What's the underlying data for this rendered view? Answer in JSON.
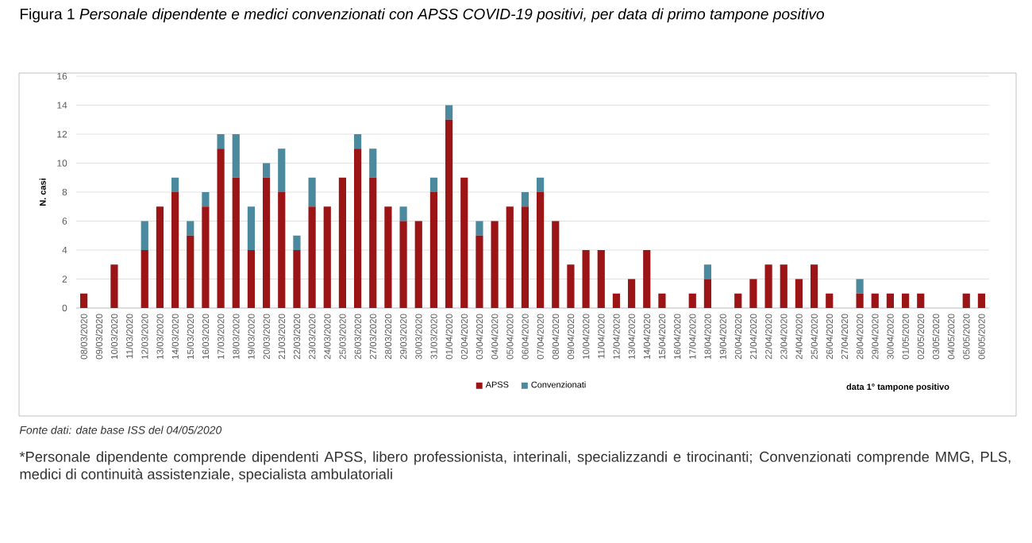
{
  "chart_data": {
    "type": "bar",
    "stacked": true,
    "title": "Figura 1 *Personale dipendente e medici convenzionati con APSS COVID-19 positivi, per data di primo tampone positivo*",
    "xlabel": "data 1° tampone positivo",
    "ylabel": "N. casi",
    "categories": [
      "08/03/2020",
      "09/03/2020",
      "10/03/2020",
      "11/03/2020",
      "12/03/2020",
      "13/03/2020",
      "14/03/2020",
      "15/03/2020",
      "16/03/2020",
      "17/03/2020",
      "18/03/2020",
      "19/03/2020",
      "20/03/2020",
      "21/03/2020",
      "22/03/2020",
      "23/03/2020",
      "24/03/2020",
      "25/03/2020",
      "26/03/2020",
      "27/03/2020",
      "28/03/2020",
      "29/03/2020",
      "30/03/2020",
      "31/03/2020",
      "01/04/2020",
      "02/04/2020",
      "03/04/2020",
      "04/04/2020",
      "05/04/2020",
      "06/04/2020",
      "07/04/2020",
      "08/04/2020",
      "09/04/2020",
      "10/04/2020",
      "11/04/2020",
      "12/04/2020",
      "13/04/2020",
      "14/04/2020",
      "15/04/2020",
      "16/04/2020",
      "17/04/2020",
      "18/04/2020",
      "19/04/2020",
      "20/04/2020",
      "21/04/2020",
      "22/04/2020",
      "23/04/2020",
      "24/04/2020",
      "25/04/2020",
      "26/04/2020",
      "27/04/2020",
      "28/04/2020",
      "29/04/2020",
      "30/04/2020",
      "01/05/2020",
      "02/05/2020",
      "03/05/2020",
      "04/05/2020",
      "05/05/2020",
      "06/05/2020"
    ],
    "series": [
      {
        "name": "APSS",
        "color": "#9b1416",
        "values": [
          1,
          0,
          3,
          0,
          4,
          7,
          8,
          5,
          7,
          11,
          9,
          4,
          9,
          8,
          4,
          7,
          7,
          9,
          11,
          9,
          7,
          6,
          6,
          8,
          13,
          9,
          5,
          6,
          7,
          7,
          8,
          6,
          3,
          4,
          4,
          1,
          2,
          4,
          1,
          0,
          1,
          2,
          0,
          1,
          2,
          3,
          3,
          2,
          3,
          1,
          0,
          1,
          1,
          1,
          1,
          1,
          0,
          0,
          1,
          1
        ]
      },
      {
        "name": "Convenzionati",
        "color": "#4b8a9e",
        "values": [
          0,
          0,
          0,
          0,
          2,
          0,
          1,
          1,
          1,
          1,
          3,
          3,
          1,
          3,
          1,
          2,
          0,
          0,
          1,
          2,
          0,
          1,
          0,
          1,
          1,
          0,
          1,
          0,
          0,
          1,
          1,
          0,
          0,
          0,
          0,
          0,
          0,
          0,
          0,
          0,
          0,
          1,
          0,
          0,
          0,
          0,
          0,
          0,
          0,
          0,
          0,
          1,
          0,
          0,
          0,
          0,
          0,
          0,
          0,
          0
        ]
      }
    ],
    "ylim": [
      0,
      16
    ],
    "yticks": [
      0,
      2,
      4,
      6,
      8,
      10,
      12,
      14,
      16
    ],
    "grid": "y",
    "legend": "bottom",
    "annotations": [
      "*Fonte dati: date base ISS del 04/05/2020*",
      "*Personale dipendente comprende dipendenti APSS, libero professionista, interinali, specializzandi e tirocinanti; Convenzionati comprende MMG, PLS, medici di continuità assistenziale, specialista ambulatoriali"
    ]
  }
}
